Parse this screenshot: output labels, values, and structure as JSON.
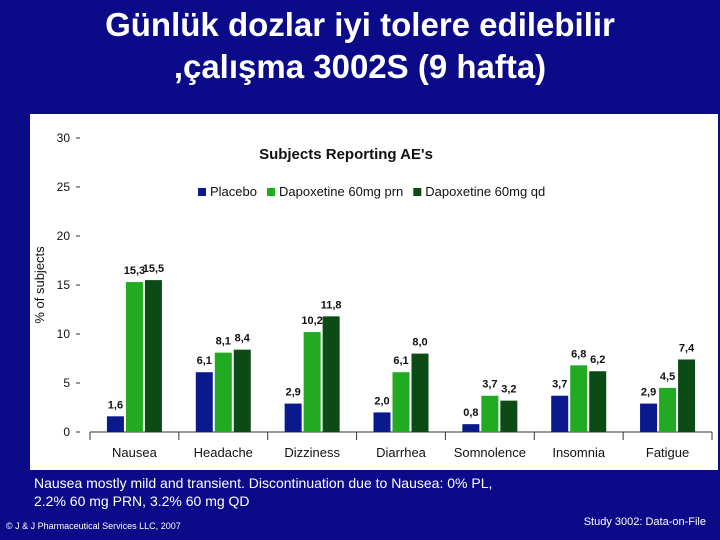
{
  "slide": {
    "title_line1": "Günlük dozlar iyi tolere edilebilir",
    "title_line2": ",çalışma 3002S (9 hafta)",
    "footnote_line1": "Nausea mostly mild and transient. Discontinuation due to Nausea: 0% PL,",
    "footnote_line2": "2.2% 60 mg PRN, 3.2% 60 mg QD",
    "copyright": "© J & J Pharmaceutical Services LLC, 2007",
    "source": "Study 3002: Data-on-File"
  },
  "chart_data": {
    "type": "bar",
    "title": "Subjects Reporting AE's",
    "ylabel": "% of subjects",
    "xlabel": "",
    "ylim": [
      0,
      30
    ],
    "yticks": [
      0,
      5,
      10,
      15,
      20,
      25,
      30
    ],
    "grid": false,
    "legend_position": "top",
    "categories": [
      "Nausea",
      "Headache",
      "Dizziness",
      "Diarrhea",
      "Somnolence",
      "Insomnia",
      "Fatigue"
    ],
    "series": [
      {
        "name": "Placebo",
        "color": "#0a1a8c",
        "values": [
          1.6,
          6.1,
          2.9,
          2.0,
          0.8,
          3.7,
          2.9
        ],
        "labels": [
          "1,6",
          "6,1",
          "2,9",
          "2,0",
          "0,8",
          "3,7",
          "2,9"
        ]
      },
      {
        "name": "Dapoxetine 60mg prn",
        "color": "#22aa22",
        "values": [
          15.3,
          8.1,
          10.2,
          6.1,
          3.7,
          6.8,
          4.5
        ],
        "labels": [
          "15,3",
          "8,1",
          "10,2",
          "6,1",
          "3,7",
          "6,8",
          "4,5"
        ]
      },
      {
        "name": "Dapoxetine 60mg qd",
        "color": "#0c4a16",
        "values": [
          15.5,
          8.4,
          11.8,
          8.0,
          3.2,
          6.2,
          7.4
        ],
        "labels": [
          "15,5",
          "8,4",
          "11,8",
          "8,0",
          "3,2",
          "6,2",
          "7,4"
        ]
      }
    ]
  }
}
